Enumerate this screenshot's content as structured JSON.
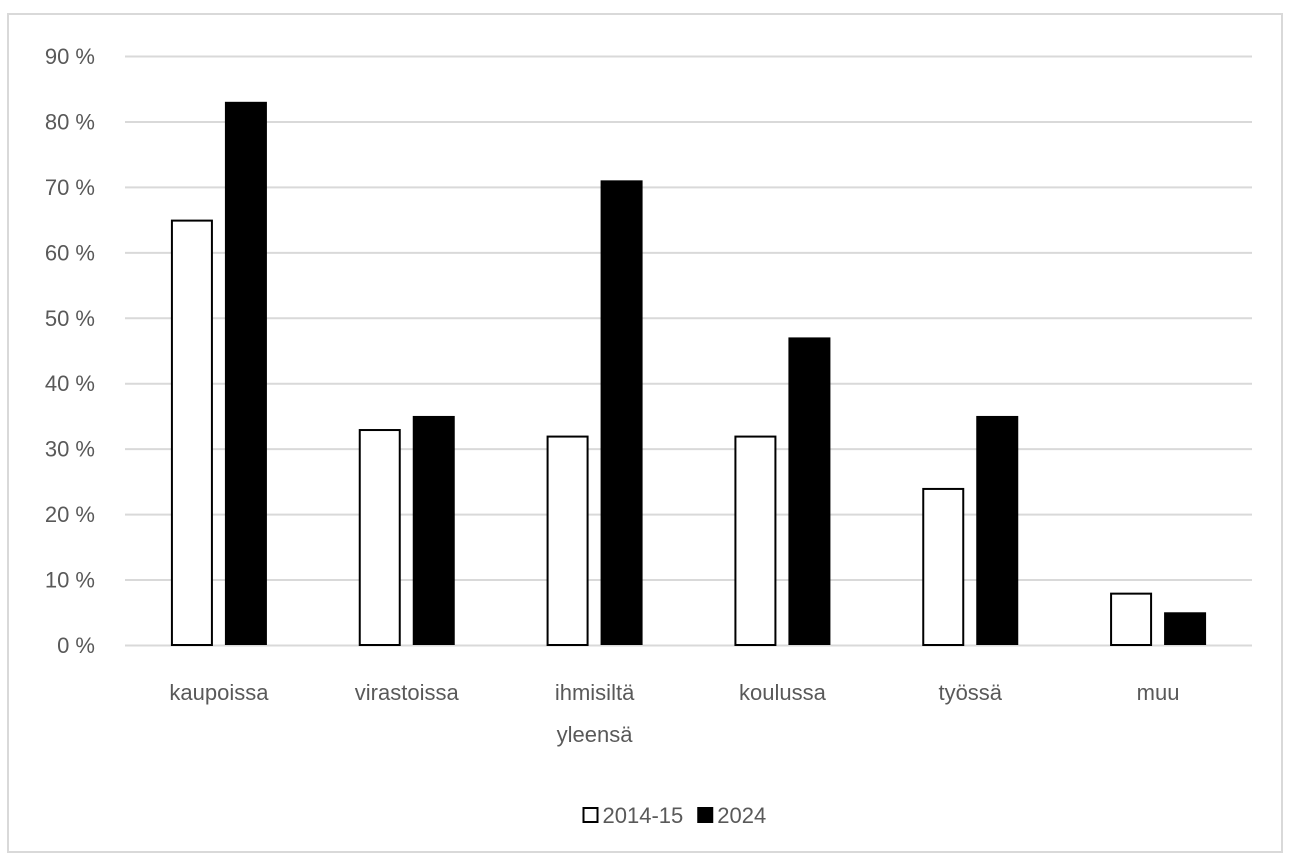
{
  "chart_data": {
    "type": "bar",
    "categories": [
      [
        "kaupoissa"
      ],
      [
        "virastoissa"
      ],
      [
        "ihmisiltä",
        "yleensä"
      ],
      [
        "koulussa"
      ],
      [
        "työssä"
      ],
      [
        "muu"
      ]
    ],
    "series": [
      {
        "name": "2014-15",
        "values": [
          65,
          33,
          32,
          32,
          24,
          8
        ],
        "fill": "#ffffff",
        "stroke": "#000000"
      },
      {
        "name": "2024",
        "values": [
          83,
          35,
          71,
          47,
          35,
          5
        ],
        "fill": "#000000",
        "stroke": "#000000"
      }
    ],
    "y_ticks": [
      "0 %",
      "10 %",
      "20 %",
      "30 %",
      "40 %",
      "50 %",
      "60 %",
      "70 %",
      "80 %",
      "90 %"
    ],
    "ylim": [
      0,
      90
    ],
    "y_step": 10,
    "grid": true,
    "legend_position": "bottom",
    "colors": {
      "gridline": "#d9d9d9",
      "text": "#595959",
      "frame": "#d9d9d9"
    }
  }
}
